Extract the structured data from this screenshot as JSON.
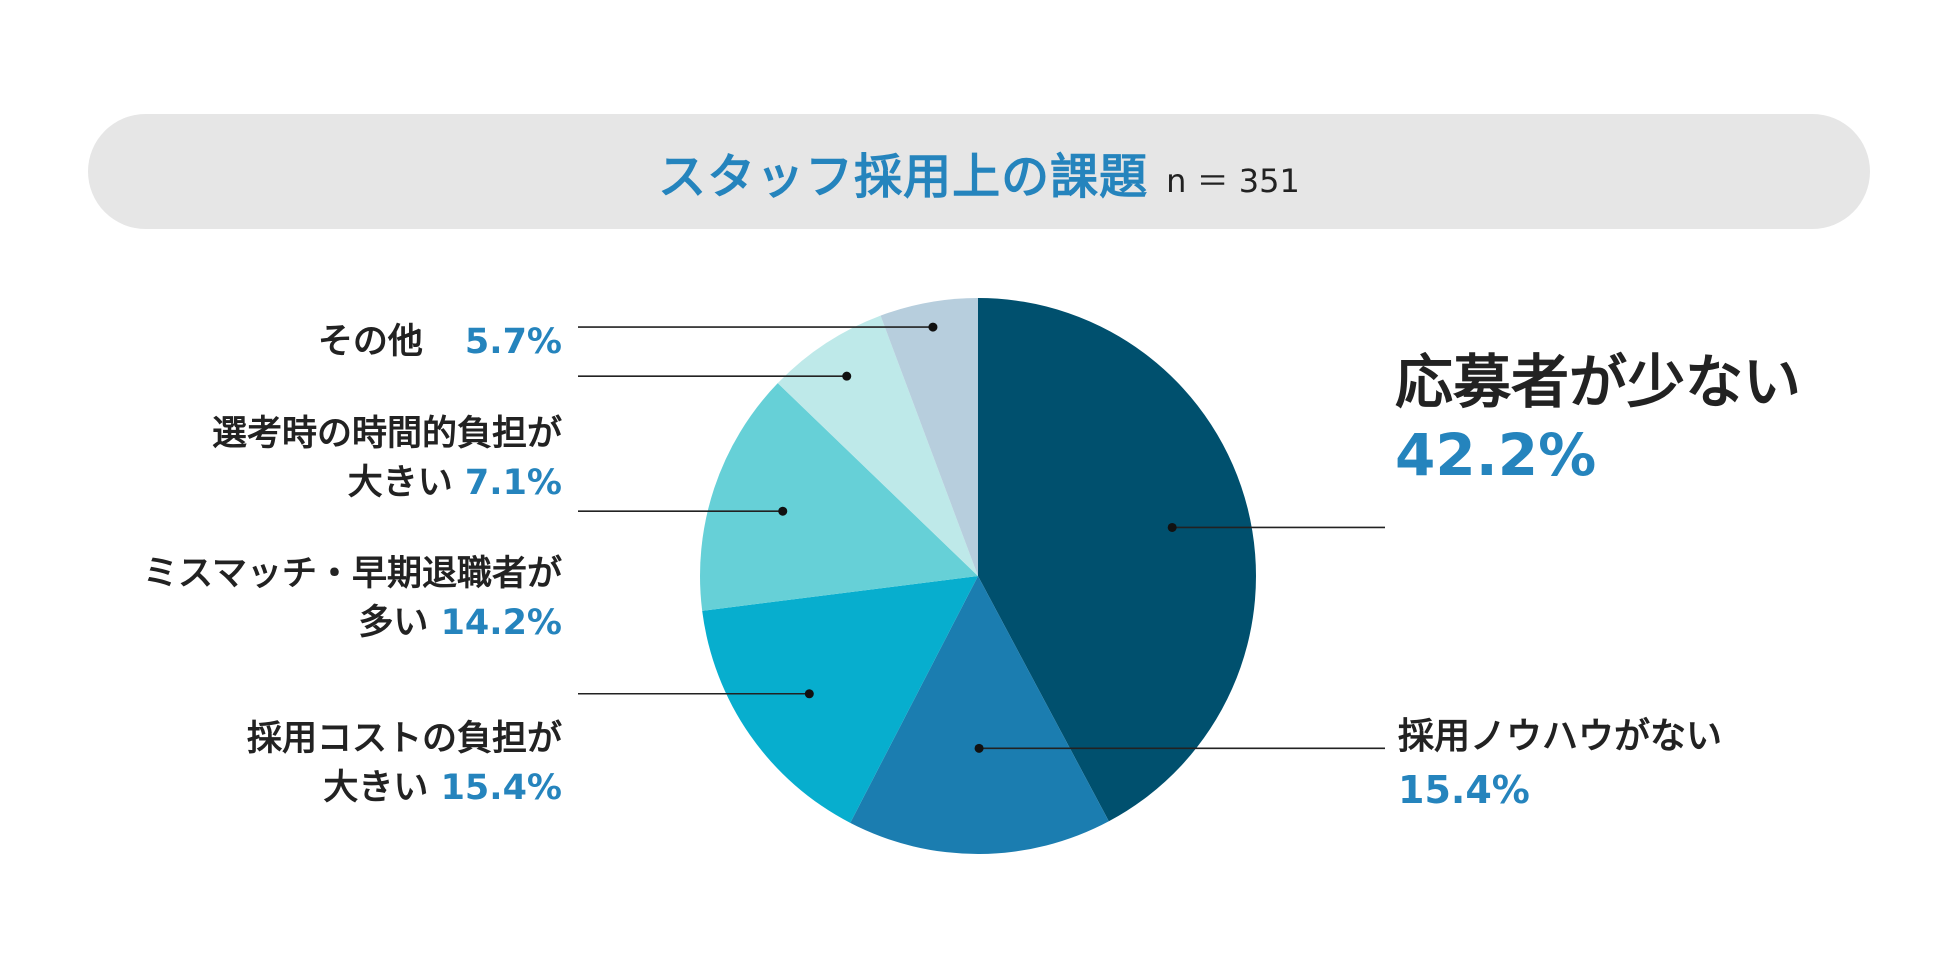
{
  "header": {
    "title": "スタッフ採用上の課題",
    "sample": "n ＝ 351"
  },
  "colors": {
    "title": "#2584bd",
    "percent": "#2584bd",
    "label": "#222222",
    "title_bar_bg": "#e6e6e6"
  },
  "chart_data": {
    "type": "pie",
    "title": "スタッフ採用上の課題",
    "n": 351,
    "start_angle_deg": 0,
    "direction": "clockwise",
    "slices": [
      {
        "key": "s1",
        "label": "応募者が少ない",
        "value": 42.2,
        "pct_text": "42.2%",
        "color": "#00506e"
      },
      {
        "key": "s2",
        "label": "採用ノウハウがない",
        "value": 15.4,
        "pct_text": "15.4%",
        "color": "#1b7db0"
      },
      {
        "key": "s3",
        "label_line1": "採用コストの負担が",
        "label_line2": "大きい",
        "value": 15.4,
        "pct_text": "15.4%",
        "color": "#07aece"
      },
      {
        "key": "s4",
        "label_line1": "ミスマッチ・早期退職者が",
        "label_line2": "多い",
        "value": 14.2,
        "pct_text": "14.2%",
        "color": "#66d0d7"
      },
      {
        "key": "s5",
        "label_line1": "選考時の時間的負担が",
        "label_line2": "大きい",
        "value": 7.1,
        "pct_text": "7.1%",
        "color": "#bee9e9"
      },
      {
        "key": "s6",
        "label": "その他",
        "value": 5.7,
        "pct_text": "5.7%",
        "color": "#b7cedd"
      }
    ]
  }
}
